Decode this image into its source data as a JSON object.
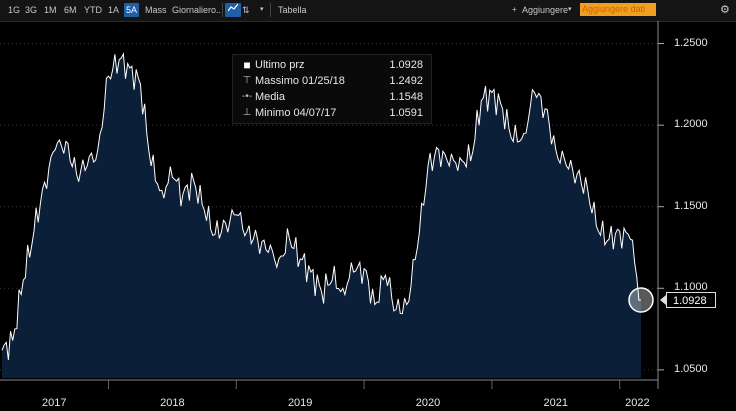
{
  "toolbar": {
    "periods": [
      "1G",
      "3G",
      "1M",
      "6M",
      "YTD",
      "1A",
      "5A",
      "Mass"
    ],
    "active_period": "5A",
    "frequency": "Giornaliero..",
    "table_label": "Tabella",
    "add_label": "Aggiungere",
    "add_data_placeholder": "Aggiungere dati",
    "dropdown_icon": "chevron-down-icon",
    "chart_type_icon": "line-chart-icon",
    "settings_icon": "gear-icon"
  },
  "tooltip": {
    "rows": [
      {
        "label": "Ultimo prz",
        "value": "1.0928",
        "icon": "square-icon"
      },
      {
        "label": "Massimo 01/25/18",
        "value": "1.2492",
        "icon": "high-marker-icon"
      },
      {
        "label": "Media",
        "value": "1.1548",
        "icon": "average-marker-icon"
      },
      {
        "label": "Minimo 04/07/17",
        "value": "1.0591",
        "icon": "low-marker-icon"
      }
    ]
  },
  "last_value_label": "1.0928",
  "colors": {
    "fill": "#0c1f38",
    "line": "#ffffff",
    "background": "#000000",
    "accent": "#f0a020"
  },
  "chart_data": {
    "type": "area",
    "ylim": [
      1.045,
      1.262
    ],
    "yticks": [
      "1.2500",
      "1.2000",
      "1.1500",
      "1.1000",
      "1.0500"
    ],
    "ytick_values": [
      1.25,
      1.2,
      1.15,
      1.1,
      1.05
    ],
    "xtick_labels": [
      "2017",
      "2018",
      "2019",
      "2020",
      "2021",
      "2022"
    ],
    "x_start": "2017-03",
    "x_end": "2022-03",
    "x": [
      "2017-03",
      "2017-04",
      "2017-05",
      "2017-06",
      "2017-07",
      "2017-08",
      "2017-09",
      "2017-10",
      "2017-11",
      "2017-12",
      "2018-01",
      "2018-02",
      "2018-03",
      "2018-04",
      "2018-05",
      "2018-06",
      "2018-07",
      "2018-08",
      "2018-09",
      "2018-10",
      "2018-11",
      "2018-12",
      "2019-01",
      "2019-02",
      "2019-03",
      "2019-04",
      "2019-05",
      "2019-06",
      "2019-07",
      "2019-08",
      "2019-09",
      "2019-10",
      "2019-11",
      "2019-12",
      "2020-01",
      "2020-02",
      "2020-03",
      "2020-04",
      "2020-05",
      "2020-06",
      "2020-07",
      "2020-08",
      "2020-09",
      "2020-10",
      "2020-11",
      "2020-12",
      "2021-01",
      "2021-02",
      "2021-03",
      "2021-04",
      "2021-05",
      "2021-06",
      "2021-07",
      "2021-08",
      "2021-09",
      "2021-10",
      "2021-11",
      "2021-12",
      "2022-01",
      "2022-02",
      "2022-03"
    ],
    "values": [
      1.062,
      1.068,
      1.105,
      1.135,
      1.165,
      1.185,
      1.19,
      1.17,
      1.175,
      1.185,
      1.23,
      1.24,
      1.235,
      1.225,
      1.175,
      1.16,
      1.168,
      1.158,
      1.166,
      1.148,
      1.133,
      1.14,
      1.145,
      1.135,
      1.13,
      1.122,
      1.118,
      1.13,
      1.118,
      1.11,
      1.098,
      1.105,
      1.1,
      1.11,
      1.112,
      1.09,
      1.108,
      1.087,
      1.09,
      1.125,
      1.175,
      1.185,
      1.175,
      1.18,
      1.178,
      1.215,
      1.22,
      1.21,
      1.19,
      1.195,
      1.22,
      1.21,
      1.185,
      1.175,
      1.17,
      1.16,
      1.135,
      1.13,
      1.135,
      1.13,
      1.0928
    ]
  }
}
